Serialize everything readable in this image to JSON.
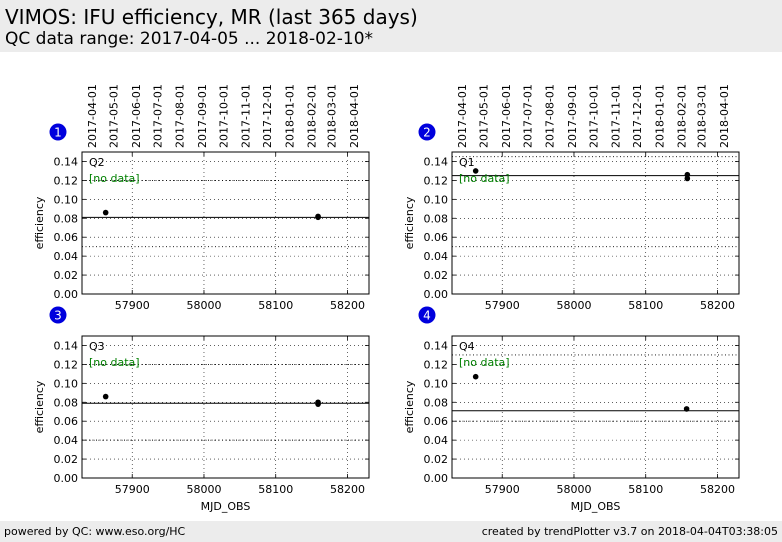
{
  "header": {
    "title": "VIMOS: IFU efficiency, MR (last 365 days)",
    "subtitle": "QC data range: 2017-04-05 ... 2018-02-10*"
  },
  "footer": {
    "left": "powered by QC: www.eso.org/HC",
    "right": "created by trendPlotter v3.7 on 2018-04-04T03:38:05"
  },
  "colors": {
    "badge": "#0000dd",
    "nodata_text": "#008000",
    "points": "#000000",
    "header_bg": "#ececec"
  },
  "chart_data": [
    {
      "type": "scatter",
      "badge": "1",
      "label": "Q2",
      "nodata_note": "[no data]",
      "xlabel": "",
      "ylabel": "efficiency",
      "xlim": [
        57830,
        58230
      ],
      "ylim": [
        0,
        0.15
      ],
      "xticks": [
        57900,
        58000,
        58100,
        58200
      ],
      "yticks": [
        0.0,
        0.02,
        0.04,
        0.06,
        0.08,
        0.1,
        0.12,
        0.14
      ],
      "ytick_labels": [
        "0.00",
        "0.02",
        "0.04",
        "0.06",
        "0.08",
        "0.10",
        "0.12",
        "0.14"
      ],
      "date_ticks": [
        "2017-04-01",
        "2017-05-01",
        "2017-06-01",
        "2017-07-01",
        "2017-08-01",
        "2017-09-01",
        "2017-10-01",
        "2017-11-01",
        "2017-12-01",
        "2018-01-01",
        "2018-02-01",
        "2018-03-01",
        "2018-04-01"
      ],
      "date_tick_mjd": [
        57844,
        57874,
        57905,
        57935,
        57966,
        57997,
        58027,
        58058,
        58088,
        58119,
        58150,
        58178,
        58209
      ],
      "reference": 0.081,
      "thresholds": [
        0.05,
        0.12
      ],
      "points": [
        {
          "x": 57863,
          "y": 0.086
        },
        {
          "x": 58159,
          "y": 0.082
        },
        {
          "x": 58159,
          "y": 0.081
        }
      ],
      "grid": true
    },
    {
      "type": "scatter",
      "badge": "2",
      "label": "Q1",
      "nodata_note": "[no data]",
      "xlabel": "",
      "ylabel": "efficiency",
      "xlim": [
        57830,
        58230
      ],
      "ylim": [
        0,
        0.15
      ],
      "xticks": [
        57900,
        58000,
        58100,
        58200
      ],
      "yticks": [
        0.0,
        0.02,
        0.04,
        0.06,
        0.08,
        0.1,
        0.12,
        0.14
      ],
      "ytick_labels": [
        "0.00",
        "0.02",
        "0.04",
        "0.06",
        "0.08",
        "0.10",
        "0.12",
        "0.14"
      ],
      "date_ticks": [
        "2017-04-01",
        "2017-05-01",
        "2017-06-01",
        "2017-07-01",
        "2017-08-01",
        "2017-09-01",
        "2017-10-01",
        "2017-11-01",
        "2017-12-01",
        "2018-01-01",
        "2018-02-01",
        "2018-03-01",
        "2018-04-01"
      ],
      "date_tick_mjd": [
        57844,
        57874,
        57905,
        57935,
        57966,
        57997,
        58027,
        58058,
        58088,
        58119,
        58150,
        58178,
        58209
      ],
      "reference": 0.125,
      "thresholds": [
        0.05,
        0.145
      ],
      "points": [
        {
          "x": 57863,
          "y": 0.13
        },
        {
          "x": 58158,
          "y": 0.126
        },
        {
          "x": 58158,
          "y": 0.122
        }
      ],
      "grid": true
    },
    {
      "type": "scatter",
      "badge": "3",
      "label": "Q3",
      "nodata_note": "[no data]",
      "xlabel": "MJD_OBS",
      "ylabel": "efficiency",
      "xlim": [
        57830,
        58230
      ],
      "ylim": [
        0,
        0.15
      ],
      "xticks": [
        57900,
        58000,
        58100,
        58200
      ],
      "yticks": [
        0.0,
        0.02,
        0.04,
        0.06,
        0.08,
        0.1,
        0.12,
        0.14
      ],
      "ytick_labels": [
        "0.00",
        "0.02",
        "0.04",
        "0.06",
        "0.08",
        "0.10",
        "0.12",
        "0.14"
      ],
      "reference": 0.079,
      "thresholds": [
        0.04,
        0.12
      ],
      "points": [
        {
          "x": 57863,
          "y": 0.086
        },
        {
          "x": 58159,
          "y": 0.08
        },
        {
          "x": 58159,
          "y": 0.078
        }
      ],
      "grid": true
    },
    {
      "type": "scatter",
      "badge": "4",
      "label": "Q4",
      "nodata_note": "[no data]",
      "xlabel": "MJD_OBS",
      "ylabel": "efficiency",
      "xlim": [
        57830,
        58230
      ],
      "ylim": [
        0,
        0.15
      ],
      "xticks": [
        57900,
        58000,
        58100,
        58200
      ],
      "yticks": [
        0.0,
        0.02,
        0.04,
        0.06,
        0.08,
        0.1,
        0.12,
        0.14
      ],
      "ytick_labels": [
        "0.00",
        "0.02",
        "0.04",
        "0.06",
        "0.08",
        "0.10",
        "0.12",
        "0.14"
      ],
      "reference": 0.071,
      "thresholds": [
        0.06,
        0.13
      ],
      "points": [
        {
          "x": 57863,
          "y": 0.107
        },
        {
          "x": 58157,
          "y": 0.073
        }
      ],
      "grid": true
    }
  ]
}
